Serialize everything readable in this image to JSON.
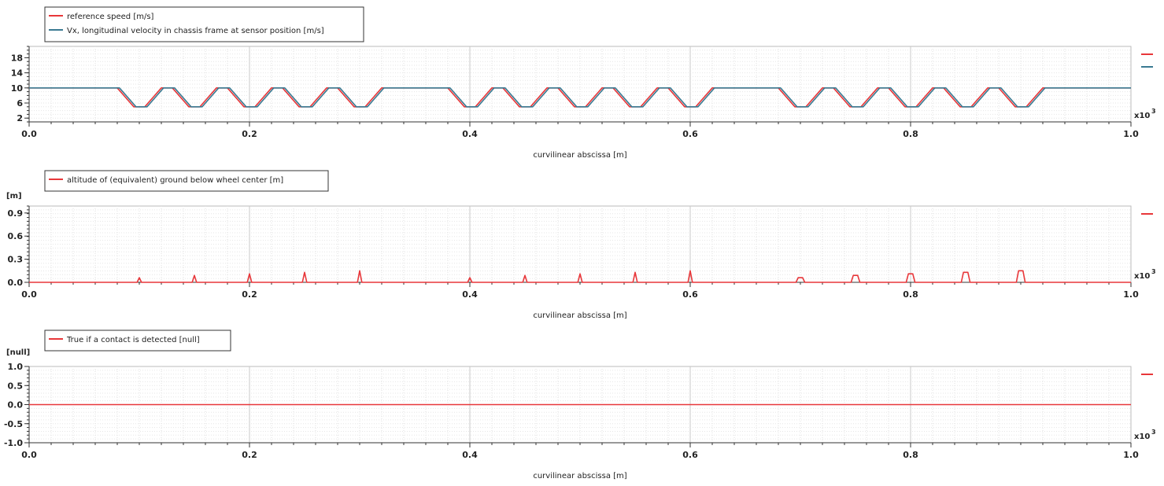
{
  "chart_data": [
    {
      "type": "line",
      "ylabel": "",
      "xlabel": "curvilinear abscissa [m]",
      "x_multiplier": "x10",
      "x_multiplier_exp": "3",
      "xlim": [
        0.0,
        1.0
      ],
      "ylim": [
        1.0,
        21.0
      ],
      "x_ticks": [
        "0.0",
        "0.2",
        "0.4",
        "0.6",
        "0.8",
        "1.0"
      ],
      "y_ticks": [
        "2",
        "6",
        "10",
        "14",
        "18"
      ],
      "grid": true,
      "legend_position": "top-left",
      "series": [
        {
          "name": "reference speed [m/s]",
          "color": "#e8373a",
          "x": [
            0.0,
            0.08,
            0.095,
            0.105,
            0.12,
            0.13,
            0.145,
            0.155,
            0.17,
            0.18,
            0.195,
            0.205,
            0.22,
            0.23,
            0.245,
            0.255,
            0.27,
            0.28,
            0.295,
            0.305,
            0.32,
            0.38,
            0.395,
            0.405,
            0.42,
            0.43,
            0.445,
            0.455,
            0.47,
            0.48,
            0.495,
            0.505,
            0.52,
            0.53,
            0.545,
            0.555,
            0.57,
            0.58,
            0.595,
            0.605,
            0.62,
            0.68,
            0.695,
            0.705,
            0.72,
            0.73,
            0.745,
            0.755,
            0.77,
            0.78,
            0.795,
            0.805,
            0.82,
            0.83,
            0.845,
            0.855,
            0.87,
            0.88,
            0.895,
            0.905,
            0.92,
            1.0
          ],
          "values": [
            10,
            10,
            5,
            5,
            10,
            10,
            5,
            5,
            10,
            10,
            5,
            5,
            10,
            10,
            5,
            5,
            10,
            10,
            5,
            5,
            10,
            10,
            5,
            5,
            10,
            10,
            5,
            5,
            10,
            10,
            5,
            5,
            10,
            10,
            5,
            5,
            10,
            10,
            5,
            5,
            10,
            10,
            5,
            5,
            10,
            10,
            5,
            5,
            10,
            10,
            5,
            5,
            10,
            10,
            5,
            5,
            10,
            10,
            5,
            5,
            10,
            10
          ]
        },
        {
          "name": "Vx, longitudinal velocity in chassis frame at sensor position [m/s]",
          "color": "#3a7a92",
          "x": [
            0.0,
            0.082,
            0.097,
            0.107,
            0.122,
            0.132,
            0.147,
            0.157,
            0.172,
            0.182,
            0.197,
            0.207,
            0.222,
            0.232,
            0.247,
            0.257,
            0.272,
            0.282,
            0.297,
            0.307,
            0.322,
            0.382,
            0.397,
            0.407,
            0.422,
            0.432,
            0.447,
            0.457,
            0.472,
            0.482,
            0.497,
            0.507,
            0.522,
            0.532,
            0.547,
            0.557,
            0.572,
            0.582,
            0.597,
            0.607,
            0.622,
            0.682,
            0.697,
            0.707,
            0.722,
            0.732,
            0.747,
            0.757,
            0.772,
            0.782,
            0.797,
            0.807,
            0.822,
            0.832,
            0.847,
            0.857,
            0.872,
            0.882,
            0.897,
            0.907,
            0.922,
            1.0
          ],
          "values": [
            10,
            10,
            5,
            5,
            10,
            10,
            5,
            5,
            10,
            10,
            5,
            5,
            10,
            10,
            5,
            5,
            10,
            10,
            5,
            5,
            10,
            10,
            5,
            5,
            10,
            10,
            5,
            5,
            10,
            10,
            5,
            5,
            10,
            10,
            5,
            5,
            10,
            10,
            5,
            5,
            10,
            10,
            5,
            5,
            10,
            10,
            5,
            5,
            10,
            10,
            5,
            5,
            10,
            10,
            5,
            5,
            10,
            10,
            5,
            5,
            10,
            10
          ]
        }
      ]
    },
    {
      "type": "line",
      "ylabel": "[m]",
      "xlabel": "curvilinear abscissa [m]",
      "x_multiplier": "x10",
      "x_multiplier_exp": "3",
      "xlim": [
        0.0,
        1.0
      ],
      "ylim": [
        0.0,
        0.99
      ],
      "x_ticks": [
        "0.0",
        "0.2",
        "0.4",
        "0.6",
        "0.8",
        "1.0"
      ],
      "y_ticks": [
        "0.0",
        "0.3",
        "0.6",
        "0.9"
      ],
      "grid": true,
      "legend_position": "top-left",
      "series": [
        {
          "name": "altitude of (equivalent) ground below wheel center [m]",
          "color": "#e8373a",
          "x": [
            0.0,
            0.098,
            0.1,
            0.102,
            0.148,
            0.15,
            0.152,
            0.198,
            0.2,
            0.202,
            0.248,
            0.25,
            0.252,
            0.298,
            0.3,
            0.302,
            0.398,
            0.4,
            0.402,
            0.448,
            0.45,
            0.452,
            0.498,
            0.5,
            0.502,
            0.548,
            0.55,
            0.552,
            0.598,
            0.6,
            0.602,
            0.696,
            0.698,
            0.702,
            0.704,
            0.746,
            0.748,
            0.752,
            0.754,
            0.796,
            0.798,
            0.802,
            0.804,
            0.846,
            0.848,
            0.852,
            0.854,
            0.896,
            0.898,
            0.902,
            0.904,
            1.0
          ],
          "values": [
            0,
            0,
            0.06,
            0,
            0,
            0.09,
            0,
            0,
            0.11,
            0,
            0,
            0.13,
            0,
            0,
            0.15,
            0,
            0,
            0.06,
            0,
            0,
            0.09,
            0,
            0,
            0.11,
            0,
            0,
            0.13,
            0,
            0,
            0.15,
            0,
            0,
            0.06,
            0.06,
            0,
            0,
            0.09,
            0.09,
            0,
            0,
            0.11,
            0.11,
            0,
            0,
            0.13,
            0.13,
            0,
            0,
            0.15,
            0.15,
            0,
            0
          ]
        }
      ]
    },
    {
      "type": "line",
      "ylabel": "[null]",
      "xlabel": "curvilinear abscissa [m]",
      "x_multiplier": "x10",
      "x_multiplier_exp": "3",
      "xlim": [
        0.0,
        1.0
      ],
      "ylim": [
        -1.0,
        1.0
      ],
      "x_ticks": [
        "0.0",
        "0.2",
        "0.4",
        "0.6",
        "0.8",
        "1.0"
      ],
      "y_ticks": [
        "1.0",
        "0.5",
        "0.0",
        "-0.5",
        "-1.0"
      ],
      "grid": true,
      "legend_position": "top-left",
      "series": [
        {
          "name": "True if a contact is detected [null]",
          "color": "#e8373a",
          "x": [
            0.0,
            1.0
          ],
          "values": [
            0,
            0
          ]
        }
      ]
    }
  ]
}
